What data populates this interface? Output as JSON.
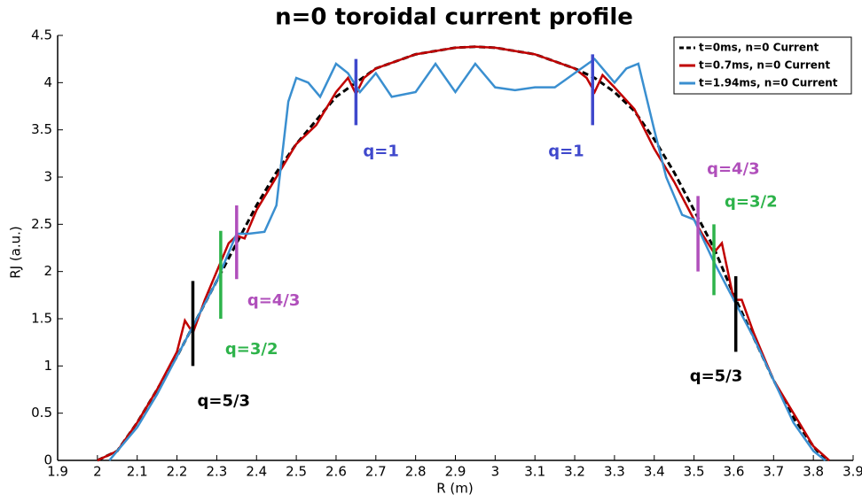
{
  "chart_data": {
    "type": "line",
    "title": "n=0 toroidal current profile",
    "x_label": "R (m)",
    "y_label": "RJ (a.u.)",
    "xlim": [
      1.9,
      3.9
    ],
    "xticks": [
      1.9,
      2,
      2.1,
      2.2,
      2.3,
      2.4,
      2.5,
      2.6,
      2.7,
      2.8,
      2.9,
      3,
      3.1,
      3.2,
      3.3,
      3.4,
      3.5,
      3.6,
      3.7,
      3.8,
      3.9
    ],
    "ylim": [
      0,
      4.5
    ],
    "yticks": [
      0,
      0.5,
      1,
      1.5,
      2,
      2.5,
      3,
      3.5,
      4,
      4.5
    ],
    "legend": "top-right",
    "series": [
      {
        "name": "t=0ms, n=0 Current",
        "color": "#000000",
        "dashed": true,
        "x": [
          2.0,
          2.05,
          2.1,
          2.15,
          2.2,
          2.25,
          2.3,
          2.35,
          2.4,
          2.45,
          2.5,
          2.55,
          2.6,
          2.65,
          2.7,
          2.8,
          2.9,
          2.95,
          3.0,
          3.1,
          3.2,
          3.25,
          3.3,
          3.35,
          3.4,
          3.45,
          3.5,
          3.55,
          3.6,
          3.65,
          3.7,
          3.75,
          3.8,
          3.83
        ],
        "values": [
          0.0,
          0.1,
          0.4,
          0.75,
          1.1,
          1.5,
          1.9,
          2.3,
          2.7,
          3.05,
          3.35,
          3.6,
          3.85,
          4.0,
          4.15,
          4.3,
          4.37,
          4.38,
          4.37,
          4.3,
          4.15,
          4.05,
          3.9,
          3.7,
          3.4,
          3.05,
          2.65,
          2.25,
          1.75,
          1.3,
          0.85,
          0.45,
          0.15,
          0.0
        ]
      },
      {
        "name": "t=0.7ms, n=0 Current",
        "color": "#c00000",
        "dashed": false,
        "x": [
          2.0,
          2.05,
          2.1,
          2.15,
          2.2,
          2.22,
          2.24,
          2.27,
          2.3,
          2.33,
          2.35,
          2.37,
          2.4,
          2.45,
          2.5,
          2.55,
          2.6,
          2.63,
          2.65,
          2.67,
          2.7,
          2.8,
          2.9,
          2.95,
          3.0,
          3.1,
          3.2,
          3.23,
          3.25,
          3.27,
          3.3,
          3.35,
          3.4,
          3.45,
          3.5,
          3.52,
          3.55,
          3.57,
          3.6,
          3.62,
          3.65,
          3.7,
          3.75,
          3.8,
          3.84
        ],
        "values": [
          0.0,
          0.1,
          0.4,
          0.75,
          1.15,
          1.48,
          1.35,
          1.7,
          2.0,
          2.3,
          2.38,
          2.35,
          2.65,
          3.0,
          3.35,
          3.55,
          3.9,
          4.05,
          3.88,
          4.05,
          4.15,
          4.3,
          4.37,
          4.38,
          4.37,
          4.3,
          4.15,
          4.05,
          3.9,
          4.08,
          3.95,
          3.72,
          3.3,
          2.95,
          2.55,
          2.4,
          2.2,
          2.3,
          1.7,
          1.7,
          1.35,
          0.85,
          0.5,
          0.15,
          0.0
        ]
      },
      {
        "name": "t=1.94ms, n=0 Current",
        "color": "#3a8fd0",
        "dashed": false,
        "x": [
          2.03,
          2.1,
          2.15,
          2.2,
          2.25,
          2.3,
          2.35,
          2.38,
          2.42,
          2.45,
          2.48,
          2.5,
          2.53,
          2.56,
          2.6,
          2.63,
          2.66,
          2.7,
          2.74,
          2.8,
          2.85,
          2.9,
          2.95,
          3.0,
          3.05,
          3.1,
          3.15,
          3.2,
          3.25,
          3.3,
          3.33,
          3.36,
          3.4,
          3.43,
          3.47,
          3.5,
          3.55,
          3.6,
          3.65,
          3.7,
          3.75,
          3.8,
          3.83
        ],
        "values": [
          0.0,
          0.35,
          0.7,
          1.1,
          1.5,
          1.9,
          2.4,
          2.4,
          2.42,
          2.7,
          3.8,
          4.05,
          4.0,
          3.85,
          4.2,
          4.1,
          3.9,
          4.1,
          3.85,
          3.9,
          4.2,
          3.9,
          4.2,
          3.95,
          3.92,
          3.95,
          3.95,
          4.1,
          4.25,
          4.0,
          4.15,
          4.2,
          3.5,
          3.0,
          2.6,
          2.55,
          2.1,
          1.7,
          1.3,
          0.85,
          0.4,
          0.1,
          0.0
        ]
      }
    ],
    "annotations": [
      {
        "text": "q=5/3",
        "x": 2.24,
        "y": [
          1.0,
          1.9
        ],
        "color": "#000000"
      },
      {
        "text": "q=3/2",
        "x": 2.31,
        "y": [
          1.5,
          2.43
        ],
        "color": "#2db34a"
      },
      {
        "text": "q=4/3",
        "x": 2.35,
        "y": [
          1.92,
          2.7
        ],
        "color": "#b04fbb"
      },
      {
        "text": "q=1",
        "x": 2.65,
        "y": [
          3.55,
          4.25
        ],
        "color": "#3f48cc"
      },
      {
        "text": "q=1",
        "x": 3.245,
        "y": [
          3.55,
          4.3
        ],
        "color": "#3f48cc"
      },
      {
        "text": "q=4/3",
        "x": 3.51,
        "y": [
          2.0,
          2.8
        ],
        "color": "#b04fbb"
      },
      {
        "text": "q=3/2",
        "x": 3.55,
        "y": [
          1.75,
          2.5
        ],
        "color": "#2db34a"
      },
      {
        "text": "q=5/3",
        "x": 3.605,
        "y": [
          1.15,
          1.95
        ],
        "color": "#000000"
      }
    ]
  }
}
